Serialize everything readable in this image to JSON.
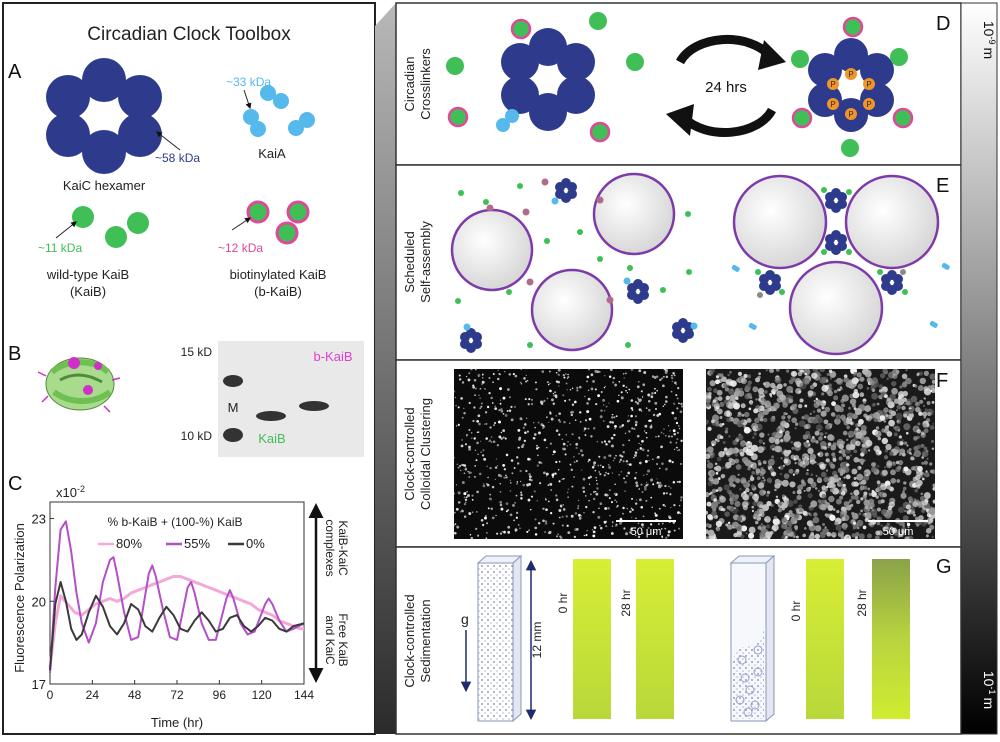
{
  "toolbox": {
    "title": "Circadian Clock Toolbox",
    "panel_a": {
      "letter": "A",
      "kaic_label": "KaiC hexamer",
      "kaic_mass": "~58 kDa",
      "kaia_label": "KaiA",
      "kaia_mass": "~33 kDa",
      "kaib_label_1": "wild-type KaiB",
      "kaib_label_2": "(KaiB)",
      "kaib_mass": "~11 kDa",
      "bkaib_label_1": "biotinylated KaiB",
      "bkaib_label_2": "(b-KaiB)",
      "bkaib_mass": "~12 kDa"
    },
    "panel_b": {
      "letter": "B",
      "marker_15": "15 kD",
      "marker_10": "10 kD",
      "lane_m": "M",
      "band_kaib": "KaiB",
      "band_bkaib": "b-KaiB"
    }
  },
  "chart_data": {
    "type": "line",
    "letter": "C",
    "ylabel": "Fluorescence Polarization",
    "xlabel": "Time (hr)",
    "multiplier": "x10",
    "multiplier_exp": "-2",
    "legend_title": "% b-KaiB + (100-%) KaiB",
    "x_ticks": [
      0,
      24,
      48,
      72,
      96,
      120,
      144
    ],
    "y_ticks": [
      17,
      20,
      23
    ],
    "xlim": [
      0,
      144
    ],
    "ylim": [
      17,
      23.6
    ],
    "annotation_top_1": "KaiB-KaiC",
    "annotation_top_2": "complexes",
    "annotation_bottom_1": "Free KaiB",
    "annotation_bottom_2": "and KaiC",
    "series": [
      {
        "name": "80%",
        "color": "#f2a9d8",
        "x": [
          0,
          3,
          6,
          10,
          14,
          18,
          22,
          26,
          30,
          34,
          38,
          42,
          46,
          50,
          54,
          58,
          62,
          66,
          70,
          74,
          78,
          82,
          86,
          90,
          94,
          98,
          102,
          106,
          110,
          114,
          118,
          122,
          126,
          130,
          134,
          138,
          142,
          144
        ],
        "y": [
          17.6,
          19.2,
          20.2,
          19.9,
          19.6,
          19.5,
          19.7,
          19.9,
          20.0,
          20.1,
          20.0,
          20.1,
          20.3,
          20.4,
          20.5,
          20.6,
          20.7,
          20.8,
          20.9,
          20.9,
          20.8,
          20.7,
          20.6,
          20.5,
          20.4,
          20.3,
          20.2,
          20.1,
          20.0,
          19.9,
          19.7,
          19.6,
          19.5,
          19.3,
          19.2,
          19.1,
          19.0,
          19.0
        ]
      },
      {
        "name": "55%",
        "color": "#b44fc7",
        "x": [
          0,
          3,
          6,
          9,
          12,
          15,
          18,
          22,
          26,
          30,
          34,
          36,
          38,
          42,
          46,
          50,
          56,
          58,
          60,
          64,
          68,
          72,
          78,
          80,
          82,
          86,
          90,
          94,
          100,
          102,
          104,
          108,
          112,
          116,
          122,
          124,
          126,
          130,
          134,
          138,
          144
        ],
        "y": [
          17.4,
          20.5,
          22.6,
          22.9,
          21.8,
          20.3,
          19.2,
          18.5,
          19.2,
          20.7,
          21.5,
          21.6,
          21.0,
          19.6,
          18.6,
          18.7,
          21.0,
          21.3,
          20.9,
          19.7,
          18.7,
          18.6,
          20.5,
          20.7,
          20.3,
          19.2,
          18.6,
          18.6,
          20.1,
          20.4,
          20.1,
          19.2,
          18.8,
          18.9,
          19.9,
          20.1,
          19.9,
          19.3,
          18.9,
          19.0,
          19.2
        ]
      },
      {
        "name": "0%",
        "color": "#3a3a3a",
        "x": [
          0,
          3,
          6,
          9,
          12,
          15,
          18,
          22,
          26,
          30,
          34,
          38,
          42,
          46,
          50,
          54,
          58,
          62,
          66,
          70,
          74,
          78,
          82,
          86,
          90,
          94,
          98,
          102,
          106,
          110,
          114,
          118,
          122,
          126,
          130,
          134,
          138,
          144
        ],
        "y": [
          17.5,
          19.9,
          20.7,
          20.0,
          19.0,
          18.6,
          18.8,
          19.6,
          20.2,
          19.8,
          19.1,
          18.8,
          19.2,
          19.9,
          19.7,
          19.1,
          18.9,
          19.4,
          19.8,
          19.5,
          19.0,
          18.9,
          19.3,
          19.6,
          19.3,
          18.9,
          19.0,
          19.4,
          19.5,
          19.1,
          18.9,
          19.1,
          19.4,
          19.3,
          19.0,
          18.9,
          19.1,
          19.2
        ]
      }
    ]
  },
  "panels": {
    "d": {
      "letter": "D",
      "label_1": "Circadian",
      "label_2": "Crosslinkers",
      "cycle": "24 hrs",
      "phospho": "P"
    },
    "e": {
      "letter": "E",
      "label_1": "Scheduled",
      "label_2": "Self-assembly"
    },
    "f": {
      "letter": "F",
      "label_1": "Clock-controlled",
      "label_2": "Colloidal Clustering",
      "scale_left": "50 μm",
      "scale_right": "50 μm"
    },
    "g": {
      "letter": "G",
      "label_1": "Clock-controlled",
      "label_2": "Sedimentation",
      "gravity": "g",
      "height": "12 mm",
      "t0_left": "0 hr",
      "t28_left": "28 hr",
      "t0_right": "0 hr",
      "t28_right": "28 hr"
    }
  },
  "scale_bar": {
    "top": "10",
    "top_exp": "-9",
    "top_unit": "m",
    "bottom": "10",
    "bottom_exp": "-1",
    "bottom_unit": "m"
  },
  "colors": {
    "kaic": "#2e3b8c",
    "kaia": "#55b9ec",
    "kaib": "#3fbf55",
    "biotin": "#e0489b",
    "phospho": "#f0952a",
    "colloid": "#7d3aa8"
  }
}
